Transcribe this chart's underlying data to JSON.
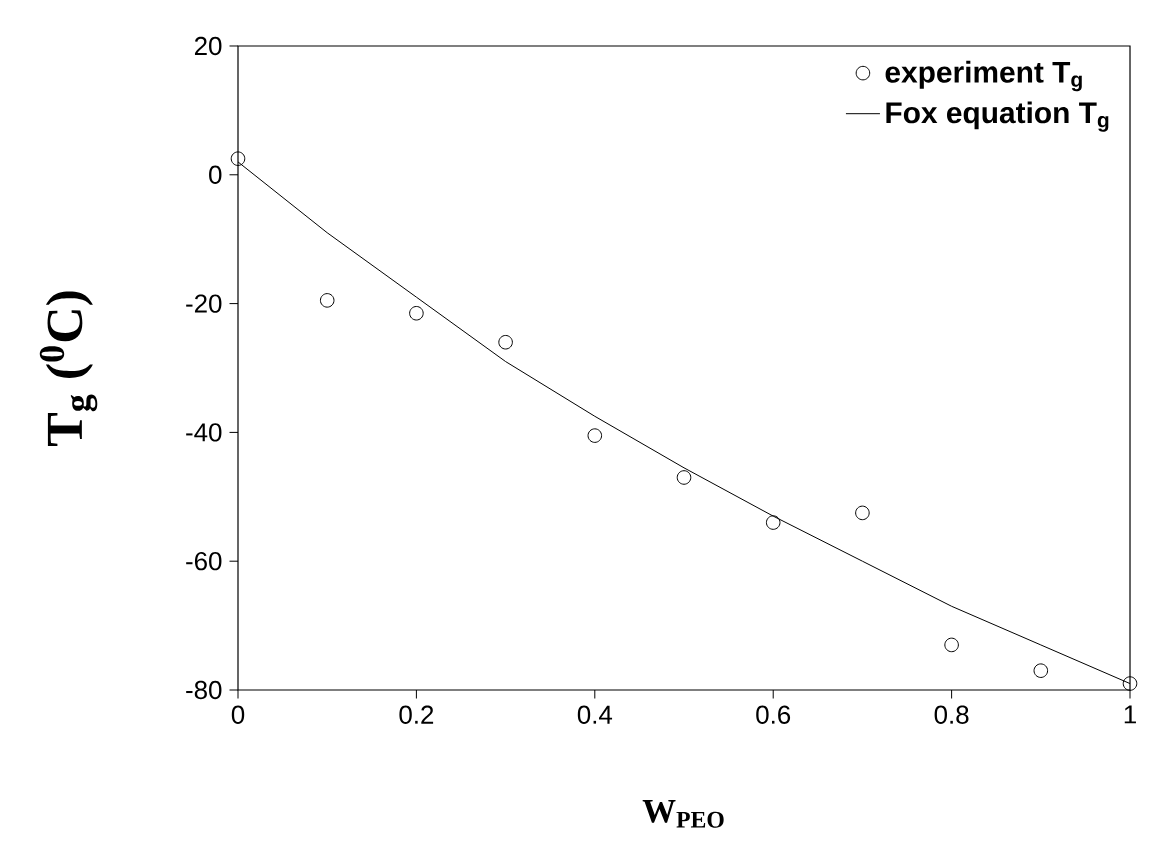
{
  "chart_data": {
    "type": "scatter",
    "xlabel": "W$_{PEO}$",
    "ylabel": "T$_{g}$ ($^{0}$C)",
    "xlim": [
      0,
      1
    ],
    "ylim": [
      -80,
      20
    ],
    "xticks": [
      0,
      0.2,
      0.4,
      0.6,
      0.8,
      1
    ],
    "yticks": [
      -80,
      -60,
      -40,
      -20,
      0,
      20
    ],
    "grid": false,
    "legend": "top right",
    "series": [
      {
        "name": "experiment T$_{g}$",
        "type": "scatter",
        "marker": "circle",
        "color": "#000000",
        "x": [
          0,
          0.1,
          0.2,
          0.3,
          0.4,
          0.5,
          0.6,
          0.7,
          0.8,
          0.9,
          1
        ],
        "values": [
          2.5,
          -19.5,
          -21.5,
          -26,
          -40.5,
          -47,
          -54,
          -52.5,
          -73,
          -77,
          -79
        ]
      },
      {
        "name": "Fox equation T$_{g}$",
        "type": "line",
        "marker": "none",
        "line_style": "solid",
        "color": "#000000",
        "x": [
          0,
          0.1,
          0.2,
          0.3,
          0.4,
          0.5,
          0.6,
          0.7,
          0.8,
          0.9,
          1
        ],
        "values": [
          2,
          -9,
          -19,
          -29,
          -37.5,
          -45.5,
          -53,
          -60,
          -67,
          -73,
          -79
        ]
      }
    ]
  }
}
